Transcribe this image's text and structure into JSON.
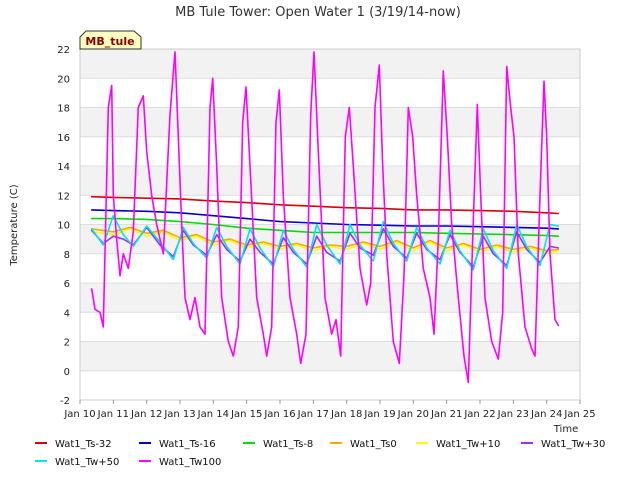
{
  "chart_data": {
    "type": "line",
    "title": "MB Tule Tower: Open Water 1 (3/19/14-now)",
    "xlabel": "Time",
    "ylabel": "Temperature (C)",
    "badge": "MB_tule",
    "xlim": [
      10,
      25
    ],
    "ylim": [
      -2,
      22
    ],
    "x_ticks": [
      {
        "v": 10,
        "label": "Jan 10"
      },
      {
        "v": 11,
        "label": "Jan 11"
      },
      {
        "v": 12,
        "label": "Jan 12"
      },
      {
        "v": 13,
        "label": "Jan 13"
      },
      {
        "v": 14,
        "label": "Jan 14"
      },
      {
        "v": 15,
        "label": "Jan 15"
      },
      {
        "v": 16,
        "label": "Jan 16"
      },
      {
        "v": 17,
        "label": "Jan 17"
      },
      {
        "v": 18,
        "label": "Jan 18"
      },
      {
        "v": 19,
        "label": "Jan 19"
      },
      {
        "v": 20,
        "label": "Jan 20"
      },
      {
        "v": 21,
        "label": "Jan 21"
      },
      {
        "v": 22,
        "label": "Jan 22"
      },
      {
        "v": 23,
        "label": "Jan 23"
      },
      {
        "v": 24,
        "label": "Jan 24"
      },
      {
        "v": 25,
        "label": "Jan 25"
      }
    ],
    "y_ticks": [
      {
        "v": -2,
        "label": "-2"
      },
      {
        "v": 0,
        "label": "0"
      },
      {
        "v": 2,
        "label": "2"
      },
      {
        "v": 4,
        "label": "4"
      },
      {
        "v": 6,
        "label": "6"
      },
      {
        "v": 8,
        "label": "8"
      },
      {
        "v": 10,
        "label": "10"
      },
      {
        "v": 12,
        "label": "12"
      },
      {
        "v": 14,
        "label": "14"
      },
      {
        "v": 16,
        "label": "16"
      },
      {
        "v": 18,
        "label": "18"
      },
      {
        "v": 20,
        "label": "20"
      },
      {
        "v": 22,
        "label": "22"
      }
    ],
    "grid": "horizontal alternating bands",
    "legend_position": "bottom",
    "series": [
      {
        "name": "Wat1_Ts-32",
        "color": "#dd0000",
        "x": [
          10.35,
          11,
          12,
          13,
          14,
          15,
          16,
          17,
          18,
          19,
          20,
          21,
          22,
          23,
          24,
          24.35
        ],
        "y": [
          11.9,
          11.85,
          11.8,
          11.75,
          11.6,
          11.5,
          11.35,
          11.25,
          11.15,
          11.1,
          11.0,
          11.0,
          10.95,
          10.9,
          10.8,
          10.75
        ]
      },
      {
        "name": "Wat1_Ts-16",
        "color": "#0000cc",
        "x": [
          10.35,
          11,
          12,
          13,
          14,
          15,
          16,
          17,
          18,
          19,
          20,
          21,
          22,
          23,
          24,
          24.35
        ],
        "y": [
          11.0,
          10.95,
          10.9,
          10.8,
          10.6,
          10.4,
          10.2,
          10.1,
          10.0,
          9.95,
          9.9,
          9.9,
          9.85,
          9.8,
          9.75,
          9.7
        ]
      },
      {
        "name": "Wat1_Ts-8",
        "color": "#00dd00",
        "x": [
          10.35,
          11,
          12,
          13,
          14,
          15,
          16,
          17,
          18,
          19,
          20,
          21,
          22,
          23,
          24,
          24.35
        ],
        "y": [
          10.4,
          10.4,
          10.35,
          10.2,
          10.0,
          9.75,
          9.6,
          9.45,
          9.45,
          9.45,
          9.45,
          9.4,
          9.35,
          9.3,
          9.25,
          9.2
        ]
      },
      {
        "name": "Wat1_Ts0",
        "color": "#ffa500",
        "x": [
          10.35,
          11,
          11.5,
          12,
          12.5,
          13,
          13.5,
          14,
          14.5,
          15,
          15.5,
          16,
          16.5,
          17,
          17.5,
          18,
          18.5,
          19,
          19.5,
          20,
          20.5,
          21,
          21.5,
          22,
          22.5,
          23,
          23.5,
          24,
          24.35
        ],
        "y": [
          9.7,
          9.5,
          9.8,
          9.4,
          9.6,
          9.1,
          9.3,
          8.8,
          9.0,
          8.6,
          8.8,
          8.5,
          8.7,
          8.4,
          8.6,
          8.5,
          8.8,
          8.5,
          8.9,
          8.4,
          8.9,
          8.4,
          8.7,
          8.3,
          8.6,
          8.3,
          8.5,
          8.2,
          8.3
        ]
      },
      {
        "name": "Wat1_Tw+10",
        "color": "#ffff00",
        "x": [
          10.35,
          11,
          11.5,
          12,
          12.5,
          13,
          13.5,
          14,
          14.5,
          15,
          15.5,
          16,
          16.5,
          17,
          17.5,
          18,
          18.5,
          19,
          19.5,
          20,
          20.5,
          21,
          21.5,
          22,
          22.5,
          23,
          23.5,
          24,
          24.35
        ],
        "y": [
          9.5,
          9.3,
          9.7,
          9.2,
          9.5,
          8.9,
          9.2,
          8.6,
          8.9,
          8.4,
          8.7,
          8.3,
          8.6,
          8.2,
          8.5,
          8.3,
          8.7,
          8.3,
          8.8,
          8.2,
          8.8,
          8.2,
          8.6,
          8.1,
          8.5,
          8.1,
          8.4,
          8.0,
          8.2
        ]
      },
      {
        "name": "Wat1_Tw+30",
        "color": "#9b30ff",
        "x": [
          10.35,
          10.7,
          11.0,
          11.3,
          11.6,
          12.0,
          12.4,
          12.8,
          13.1,
          13.4,
          13.8,
          14.1,
          14.4,
          14.8,
          15.1,
          15.4,
          15.8,
          16.1,
          16.4,
          16.8,
          17.1,
          17.4,
          17.8,
          18.1,
          18.4,
          18.8,
          19.1,
          19.4,
          19.8,
          20.1,
          20.4,
          20.8,
          21.1,
          21.4,
          21.8,
          22.1,
          22.4,
          22.8,
          23.1,
          23.4,
          23.8,
          24.1,
          24.35
        ],
        "y": [
          9.6,
          8.7,
          9.2,
          9.0,
          8.6,
          9.8,
          8.6,
          7.8,
          9.6,
          8.6,
          7.9,
          9.3,
          8.3,
          7.5,
          9.0,
          8.1,
          7.3,
          9.1,
          8.1,
          7.3,
          9.2,
          8.1,
          7.5,
          9.4,
          8.4,
          7.9,
          9.7,
          8.5,
          7.7,
          9.4,
          8.3,
          7.6,
          9.3,
          8.1,
          7.1,
          9.2,
          8.0,
          7.2,
          9.5,
          8.3,
          7.4,
          8.5,
          8.4
        ]
      },
      {
        "name": "Wat1_Tw+50",
        "color": "#00e5ee",
        "x": [
          10.35,
          10.7,
          11.0,
          11.3,
          11.6,
          12.0,
          12.4,
          12.8,
          13.1,
          13.4,
          13.8,
          14.1,
          14.4,
          14.8,
          15.1,
          15.4,
          15.8,
          16.1,
          16.4,
          16.8,
          17.1,
          17.4,
          17.8,
          18.1,
          18.4,
          18.8,
          19.1,
          19.4,
          19.8,
          20.1,
          20.4,
          20.8,
          21.1,
          21.4,
          21.8,
          22.1,
          22.4,
          22.8,
          23.1,
          23.4,
          23.8,
          24.1,
          24.35
        ],
        "y": [
          9.7,
          8.6,
          10.6,
          9.3,
          8.5,
          9.9,
          8.8,
          7.6,
          9.8,
          8.7,
          7.7,
          9.8,
          8.5,
          7.3,
          9.7,
          8.4,
          7.1,
          9.6,
          8.3,
          7.1,
          10.0,
          8.6,
          7.3,
          10.0,
          8.6,
          7.5,
          10.2,
          8.7,
          7.5,
          9.8,
          8.4,
          7.3,
          9.6,
          8.2,
          6.9,
          9.7,
          8.2,
          7.0,
          10.0,
          8.5,
          7.2,
          10.0,
          9.9
        ]
      },
      {
        "name": "Wat1_Tw100",
        "color": "#ff00ff",
        "x": [
          10.35,
          10.45,
          10.6,
          10.7,
          10.85,
          10.95,
          11.0,
          11.1,
          11.2,
          11.3,
          11.45,
          11.6,
          11.75,
          11.9,
          12.0,
          12.15,
          12.3,
          12.5,
          12.7,
          12.85,
          12.95,
          13.05,
          13.15,
          13.3,
          13.45,
          13.6,
          13.75,
          13.9,
          13.98,
          14.1,
          14.25,
          14.45,
          14.6,
          14.75,
          14.88,
          14.98,
          15.1,
          15.3,
          15.5,
          15.6,
          15.75,
          15.88,
          15.98,
          16.1,
          16.3,
          16.5,
          16.62,
          16.78,
          16.92,
          17.02,
          17.15,
          17.35,
          17.55,
          17.68,
          17.82,
          17.96,
          18.08,
          18.2,
          18.4,
          18.6,
          18.72,
          18.85,
          18.98,
          19.08,
          19.2,
          19.4,
          19.58,
          19.72,
          19.85,
          19.98,
          20.1,
          20.3,
          20.5,
          20.62,
          20.75,
          20.9,
          21.02,
          21.15,
          21.35,
          21.52,
          21.65,
          21.78,
          21.92,
          22.02,
          22.15,
          22.35,
          22.55,
          22.68,
          22.8,
          22.92,
          23.02,
          23.15,
          23.35,
          23.55,
          23.65,
          23.8,
          23.92,
          24.0,
          24.1,
          24.25,
          24.35
        ],
        "y": [
          5.6,
          4.2,
          4.0,
          3.0,
          18.0,
          19.5,
          12.0,
          9.0,
          6.5,
          8.0,
          7.0,
          9.5,
          18.0,
          18.8,
          15.0,
          12.0,
          10.0,
          8.0,
          17.5,
          21.8,
          16.0,
          10.0,
          5.0,
          3.5,
          5.0,
          3.0,
          2.5,
          18.0,
          20.0,
          14.0,
          5.0,
          2.0,
          1.0,
          3.0,
          17.0,
          19.4,
          14.0,
          5.0,
          2.5,
          1.0,
          3.0,
          17.0,
          19.2,
          12.0,
          5.0,
          2.5,
          0.5,
          2.5,
          17.5,
          21.8,
          15.0,
          5.0,
          2.5,
          3.5,
          1.0,
          16.0,
          18.0,
          14.0,
          7.0,
          4.5,
          6.0,
          18.0,
          20.9,
          14.0,
          8.0,
          2.0,
          0.5,
          6.5,
          18.0,
          16.0,
          12.0,
          7.0,
          5.0,
          2.5,
          9.0,
          20.5,
          16.0,
          10.0,
          5.0,
          1.0,
          -0.8,
          9.0,
          18.2,
          12.0,
          5.0,
          2.0,
          0.8,
          4.0,
          20.8,
          18.0,
          16.0,
          8.0,
          3.0,
          1.5,
          1.0,
          12.0,
          19.8,
          16.0,
          8.0,
          3.5,
          3.1
        ]
      }
    ]
  }
}
